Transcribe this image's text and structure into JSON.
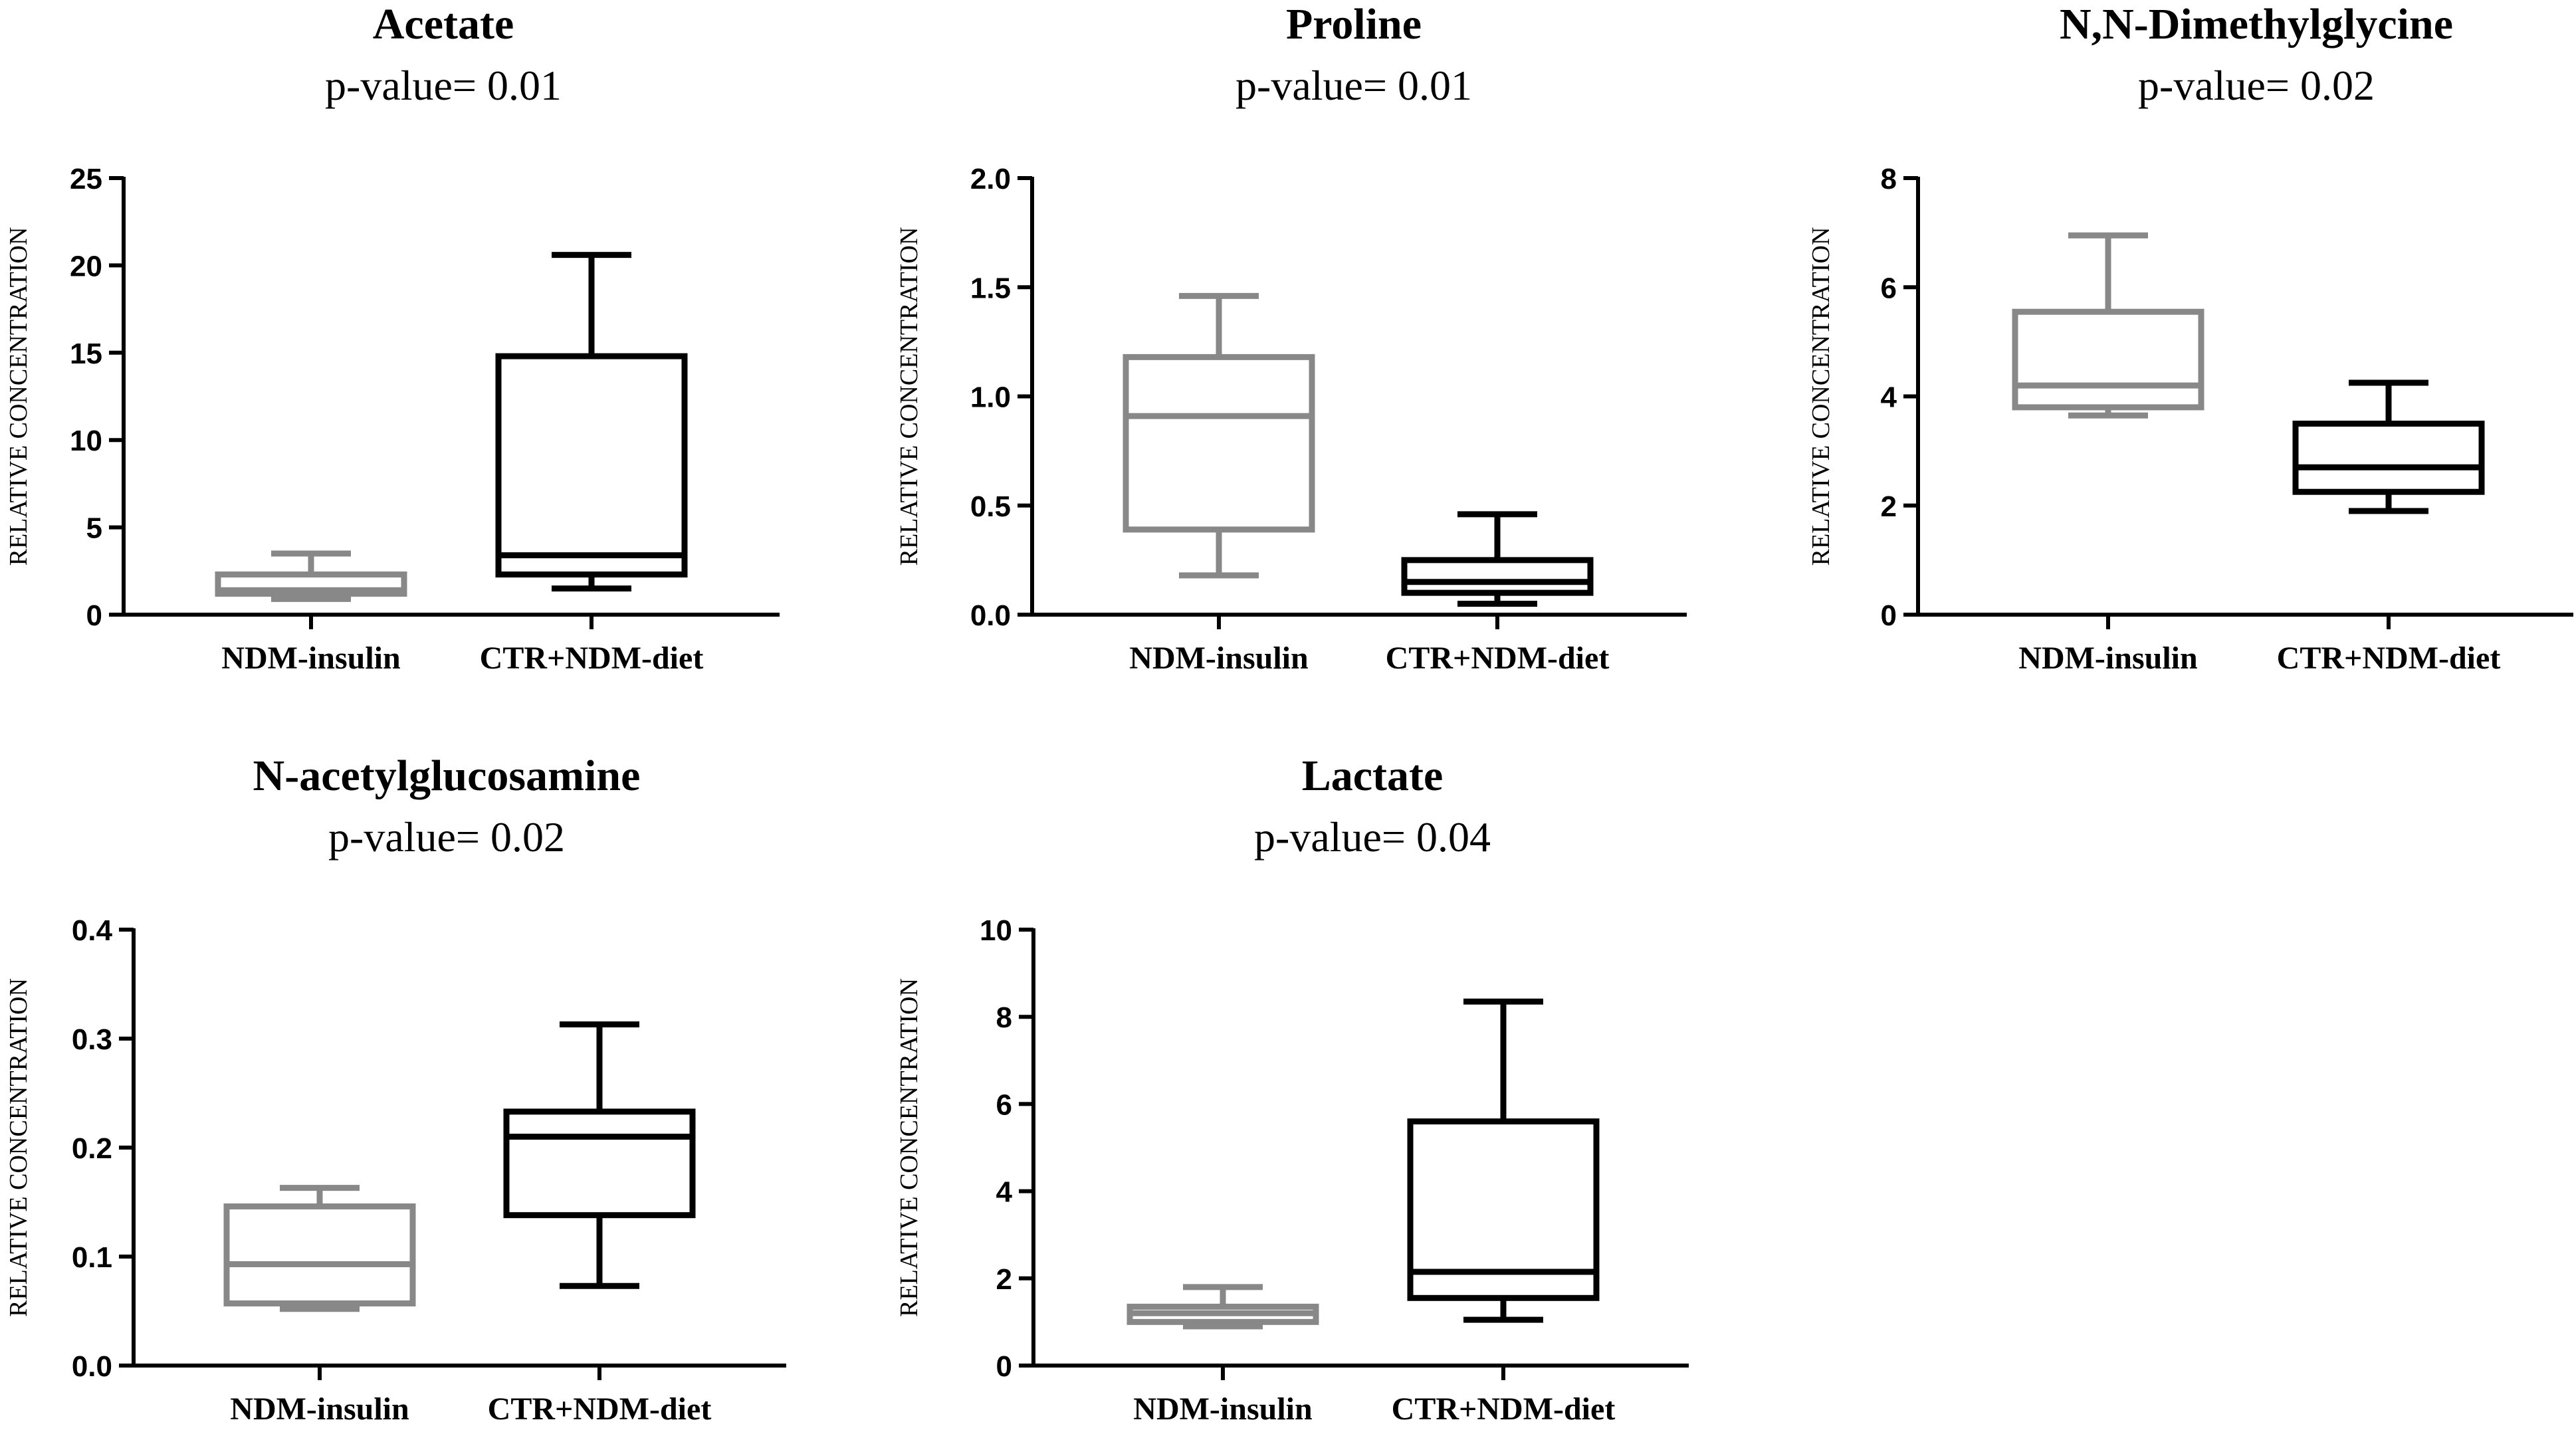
{
  "colors": {
    "group1": "#888888",
    "group2": "#000000",
    "axis": "#000000"
  },
  "chart_data": [
    {
      "type": "box",
      "title": "Acetate",
      "subtitle": "p-value= 0.01",
      "ylabel": "RELATIVE CONCENTRATION",
      "ylim": [
        0,
        25
      ],
      "yticks": [
        0,
        5,
        10,
        15,
        20,
        25
      ],
      "ytick_labels": [
        "0",
        "5",
        "10",
        "15",
        "20",
        "25"
      ],
      "categories": [
        "NDM-insulin",
        "CTR+NDM-diet"
      ],
      "boxes": [
        {
          "min": 0.9,
          "q1": 1.2,
          "median": 1.4,
          "q3": 2.3,
          "max": 3.5
        },
        {
          "min": 1.5,
          "q1": 2.3,
          "median": 3.4,
          "q3": 14.8,
          "max": 20.6
        }
      ]
    },
    {
      "type": "box",
      "title": "Proline",
      "subtitle": "p-value= 0.01",
      "ylabel": "RELATIVE CONCENTRATION",
      "ylim": [
        0,
        2
      ],
      "yticks": [
        0,
        0.5,
        1,
        1.5,
        2
      ],
      "ytick_labels": [
        "0.0",
        "0.5",
        "1.0",
        "1.5",
        "2.0"
      ],
      "categories": [
        "NDM-insulin",
        "CTR+NDM-diet"
      ],
      "boxes": [
        {
          "min": 0.18,
          "q1": 0.39,
          "median": 0.91,
          "q3": 1.18,
          "max": 1.46
        },
        {
          "min": 0.05,
          "q1": 0.1,
          "median": 0.15,
          "q3": 0.25,
          "max": 0.46
        }
      ]
    },
    {
      "type": "box",
      "title": "N,N-Dimethylglycine",
      "subtitle": "p-value= 0.02",
      "ylabel": "RELATIVE CONCENTRATION",
      "ylim": [
        0,
        8
      ],
      "yticks": [
        0,
        2,
        4,
        6,
        8
      ],
      "ytick_labels": [
        "0",
        "2",
        "4",
        "6",
        "8"
      ],
      "categories": [
        "NDM-insulin",
        "CTR+NDM-diet"
      ],
      "boxes": [
        {
          "min": 3.65,
          "q1": 3.8,
          "median": 4.2,
          "q3": 5.55,
          "max": 6.95
        },
        {
          "min": 1.9,
          "q1": 2.25,
          "median": 2.7,
          "q3": 3.5,
          "max": 4.25
        }
      ]
    },
    {
      "type": "box",
      "title": "N-acetylglucosamine",
      "subtitle": "p-value= 0.02",
      "ylabel": "RELATIVE CONCENTRATION",
      "ylim": [
        0,
        0.4
      ],
      "yticks": [
        0,
        0.1,
        0.2,
        0.3,
        0.4
      ],
      "ytick_labels": [
        "0.0",
        "0.1",
        "0.2",
        "0.3",
        "0.4"
      ],
      "categories": [
        "NDM-insulin",
        "CTR+NDM-diet"
      ],
      "boxes": [
        {
          "min": 0.052,
          "q1": 0.057,
          "median": 0.093,
          "q3": 0.146,
          "max": 0.163
        },
        {
          "min": 0.073,
          "q1": 0.138,
          "median": 0.21,
          "q3": 0.233,
          "max": 0.313
        }
      ]
    },
    {
      "type": "box",
      "title": "Lactate",
      "subtitle": "p-value= 0.04",
      "ylabel": "RELATIVE CONCENTRATION",
      "ylim": [
        0,
        10
      ],
      "yticks": [
        0,
        2,
        4,
        6,
        8,
        10
      ],
      "ytick_labels": [
        "0",
        "2",
        "4",
        "6",
        "8",
        "10"
      ],
      "categories": [
        "NDM-insulin",
        "CTR+NDM-diet"
      ],
      "boxes": [
        {
          "min": 0.9,
          "q1": 1.0,
          "median": 1.2,
          "q3": 1.35,
          "max": 1.8
        },
        {
          "min": 1.05,
          "q1": 1.55,
          "median": 2.15,
          "q3": 5.6,
          "max": 8.35
        }
      ]
    }
  ]
}
